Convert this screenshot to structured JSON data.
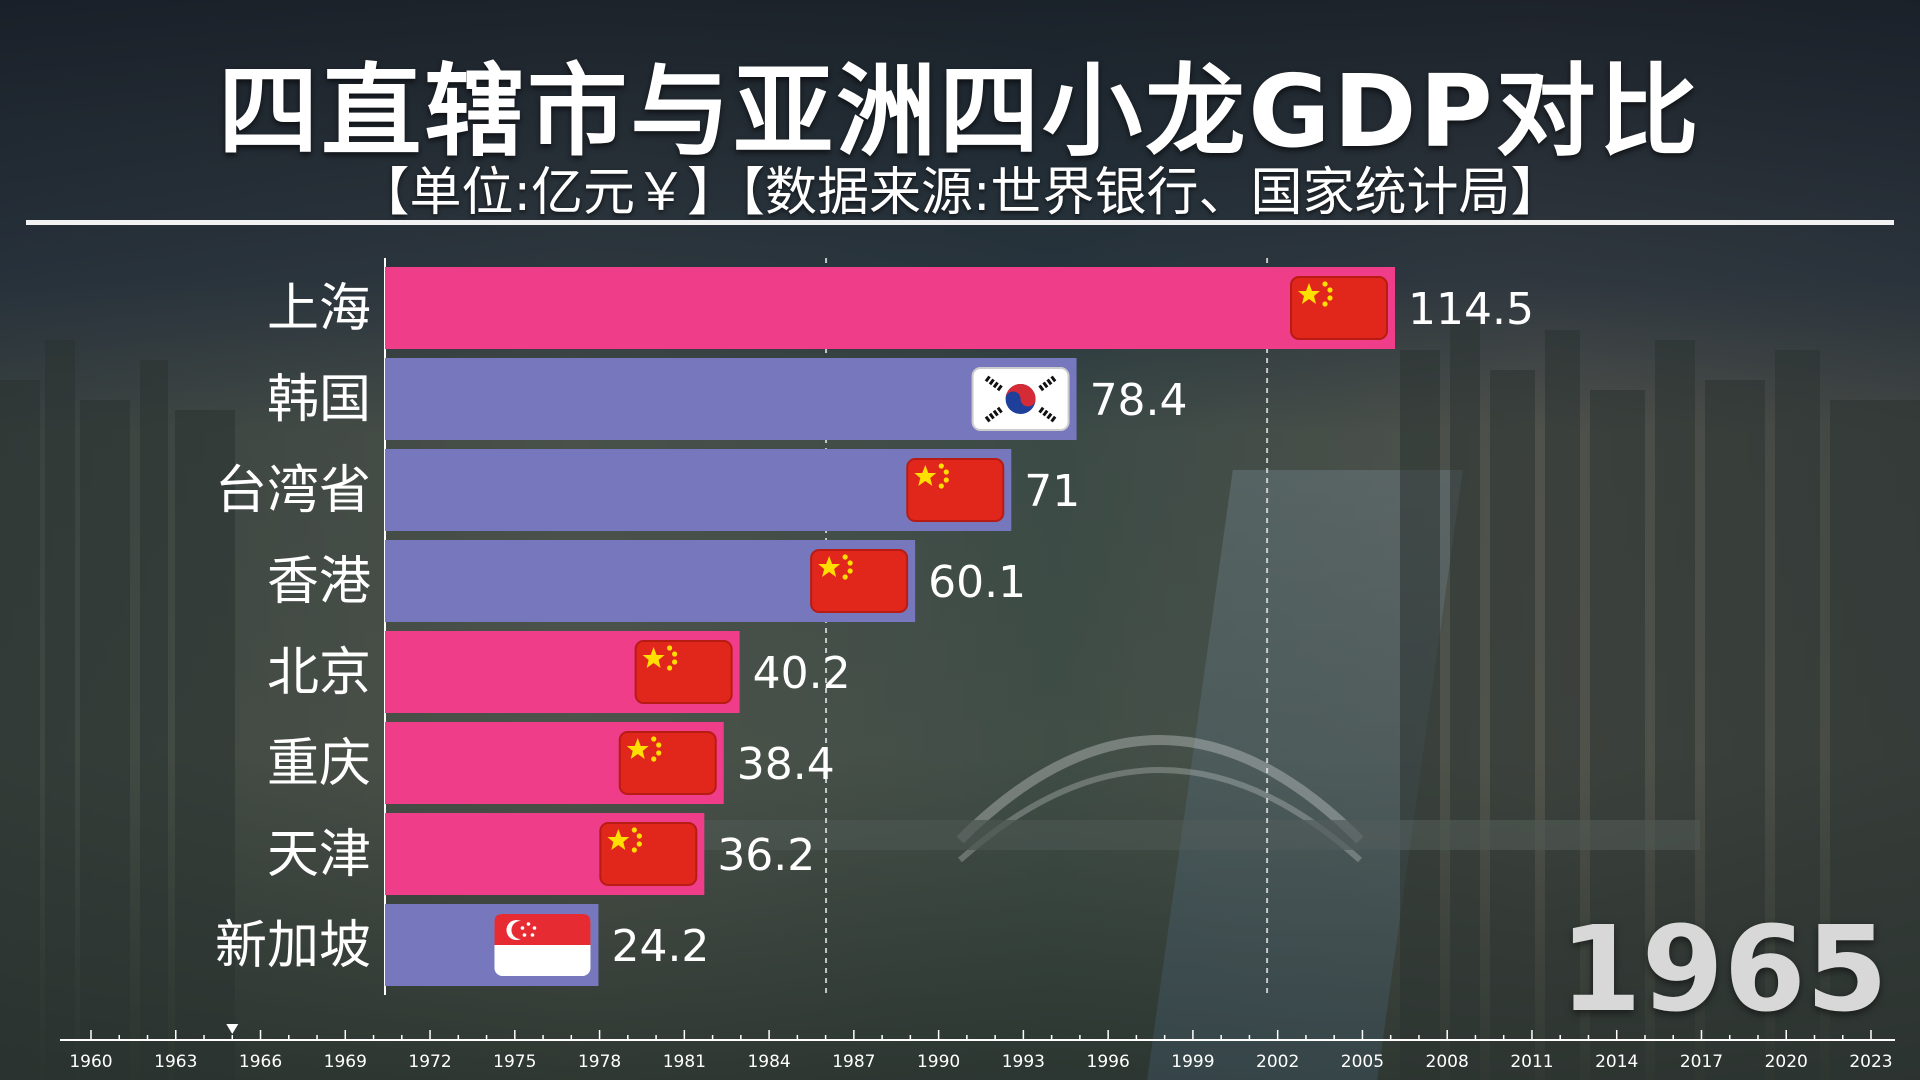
{
  "title": "四直辖市与亚洲四小龙GDP对比",
  "subtitle": "【单位:亿元￥】【数据来源:世界银行、国家统计局】",
  "colors": {
    "municipality": "#ef3d8a",
    "dragon": "#7677bd",
    "rule": "#f2f2f2"
  },
  "chart_data": {
    "type": "bar",
    "orientation": "horizontal",
    "title": "四直辖市与亚洲四小龙GDP对比",
    "unit": "亿元￥",
    "year": "1965",
    "categories": [
      "上海",
      "韩国",
      "台湾省",
      "香港",
      "北京",
      "重庆",
      "天津",
      "新加坡"
    ],
    "values": [
      114.5,
      78.4,
      71,
      60.1,
      40.2,
      38.4,
      36.2,
      24.2
    ],
    "value_labels": [
      "114.5",
      "78.4",
      "71",
      "60.1",
      "40.2",
      "38.4",
      "36.2",
      "24.2"
    ],
    "groups": [
      "municipality",
      "dragon",
      "dragon",
      "dragon",
      "municipality",
      "municipality",
      "municipality",
      "dragon"
    ],
    "flags": [
      "china-flag-icon",
      "korea-flag-icon",
      "china-flag-icon",
      "china-flag-icon",
      "china-flag-icon",
      "china-flag-icon",
      "china-flag-icon",
      "singapore-flag-icon"
    ],
    "xlim": [
      0,
      114.5
    ],
    "gridlines": [
      50,
      100
    ],
    "timeline": {
      "ticks": [
        "1960",
        "1963",
        "1966",
        "1969",
        "1972",
        "1975",
        "1978",
        "1981",
        "1984",
        "1987",
        "1990",
        "1993",
        "1996",
        "1999",
        "2002",
        "2005",
        "2008",
        "2011",
        "2014",
        "2017",
        "2020",
        "2023"
      ],
      "current": 1965
    }
  }
}
